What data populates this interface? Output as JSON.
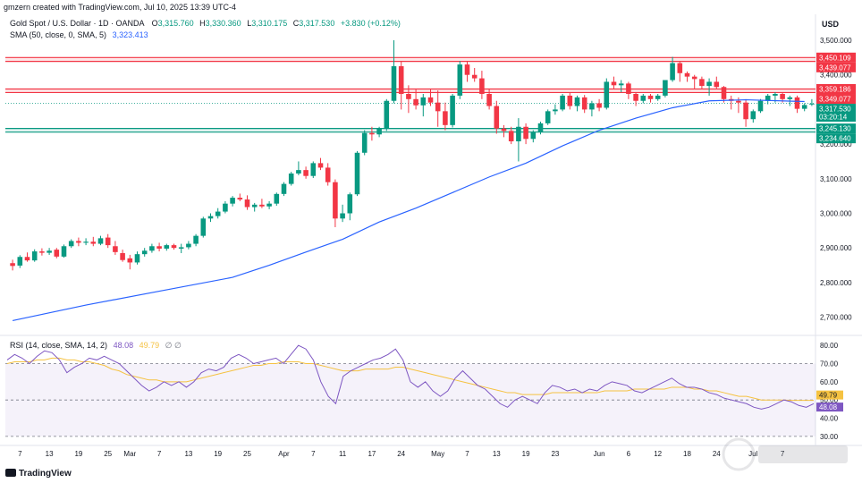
{
  "header": {
    "created_by": "gmzern created with TradingView.com, Jul 10, 2025 13:39 UTC-4",
    "symbol": "Gold Spot / U.S. Dollar · 1D · OANDA",
    "o_label": "O",
    "o_value": "3,315.760",
    "h_label": "H",
    "h_value": "3,330.360",
    "l_label": "L",
    "l_value": "3,310.175",
    "c_label": "C",
    "c_value": "3,317.530",
    "change": "+3.830 (+0.12%)",
    "sma_label": "SMA (50, close, 0, SMA, 5)",
    "sma_value": "3,323.413",
    "currency": "USD"
  },
  "rsi_legend": {
    "label": "RSI (14, close, SMA, 14, 2)",
    "rsi_value": "48.08",
    "ma_value": "49.79",
    "extra": "∅ ∅"
  },
  "brand": "TradingView",
  "colors": {
    "up": "#089981",
    "down": "#f23645",
    "sma": "#2962ff",
    "rsi": "#7e57c2",
    "rsi_ma": "#f5c242",
    "resistance": "#f23645",
    "support": "#089981"
  },
  "chart_data": [
    {
      "type": "candlestick",
      "yticks": [
        "3,500.000",
        "3,400.000",
        "3,300.000",
        "3,200.000",
        "3,100.000",
        "3,000.000",
        "2,900.000",
        "2,800.000",
        "2,700.000"
      ],
      "ytick_values": [
        3500,
        3400,
        3300,
        3200,
        3100,
        3000,
        2900,
        2800,
        2700
      ],
      "ylim": [
        2655,
        3575
      ],
      "xticks": [
        {
          "label": "7",
          "i": 1
        },
        {
          "label": "13",
          "i": 5
        },
        {
          "label": "19",
          "i": 9
        },
        {
          "label": "25",
          "i": 13
        },
        {
          "label": "Mar",
          "i": 16
        },
        {
          "label": "7",
          "i": 20
        },
        {
          "label": "13",
          "i": 24
        },
        {
          "label": "19",
          "i": 28
        },
        {
          "label": "25",
          "i": 32
        },
        {
          "label": "Apr",
          "i": 37
        },
        {
          "label": "7",
          "i": 41
        },
        {
          "label": "11",
          "i": 45
        },
        {
          "label": "17",
          "i": 49
        },
        {
          "label": "24",
          "i": 53
        },
        {
          "label": "May",
          "i": 58
        },
        {
          "label": "7",
          "i": 62
        },
        {
          "label": "13",
          "i": 66
        },
        {
          "label": "19",
          "i": 70
        },
        {
          "label": "23",
          "i": 74
        },
        {
          "label": "Jun",
          "i": 80
        },
        {
          "label": "6",
          "i": 84
        },
        {
          "label": "12",
          "i": 88
        },
        {
          "label": "18",
          "i": 92
        },
        {
          "label": "24",
          "i": 96
        },
        {
          "label": "Jul",
          "i": 101
        },
        {
          "label": "7",
          "i": 105
        }
      ],
      "price_tags": [
        {
          "value": 3450.109,
          "label": "3,450.109",
          "kind": "resistance"
        },
        {
          "value": 3439.077,
          "label": "3,439.077",
          "kind": "resistance"
        },
        {
          "value": 3359.186,
          "label": "3,359.186",
          "kind": "resistance"
        },
        {
          "value": 3349.077,
          "label": "3,349.077",
          "kind": "resistance"
        },
        {
          "value": 3317.53,
          "label": "3,317.530",
          "kind": "last",
          "sub": "03:20:14"
        },
        {
          "value": 3245.13,
          "label": "3,245.130",
          "kind": "support"
        },
        {
          "value": 3234.64,
          "label": "3,234.640",
          "kind": "support"
        }
      ],
      "candles": [
        [
          2856,
          2866,
          2835,
          2848
        ],
        [
          2849,
          2879,
          2842,
          2874
        ],
        [
          2874,
          2887,
          2860,
          2864
        ],
        [
          2864,
          2896,
          2860,
          2890
        ],
        [
          2890,
          2899,
          2878,
          2886
        ],
        [
          2886,
          2900,
          2880,
          2892
        ],
        [
          2895,
          2900,
          2870,
          2875
        ],
        [
          2875,
          2910,
          2872,
          2905
        ],
        [
          2905,
          2925,
          2900,
          2920
        ],
        [
          2920,
          2930,
          2905,
          2915
        ],
        [
          2915,
          2928,
          2908,
          2918
        ],
        [
          2918,
          2932,
          2905,
          2912
        ],
        [
          2912,
          2935,
          2908,
          2928
        ],
        [
          2930,
          2940,
          2900,
          2908
        ],
        [
          2905,
          2920,
          2880,
          2888
        ],
        [
          2885,
          2895,
          2860,
          2865
        ],
        [
          2870,
          2880,
          2838,
          2858
        ],
        [
          2858,
          2890,
          2852,
          2882
        ],
        [
          2882,
          2900,
          2875,
          2892
        ],
        [
          2892,
          2912,
          2886,
          2905
        ],
        [
          2905,
          2915,
          2890,
          2898
        ],
        [
          2898,
          2912,
          2892,
          2908
        ],
        [
          2908,
          2912,
          2895,
          2900
        ],
        [
          2898,
          2912,
          2885,
          2902
        ],
        [
          2902,
          2920,
          2896,
          2912
        ],
        [
          2912,
          2940,
          2905,
          2935
        ],
        [
          2935,
          2990,
          2930,
          2985
        ],
        [
          2985,
          3000,
          2975,
          2992
        ],
        [
          2992,
          3015,
          2985,
          3005
        ],
        [
          3005,
          3035,
          3000,
          3028
        ],
        [
          3028,
          3050,
          3020,
          3045
        ],
        [
          3045,
          3057,
          3035,
          3040
        ],
        [
          3040,
          3052,
          3010,
          3018
        ],
        [
          3018,
          3030,
          3005,
          3025
        ],
        [
          3025,
          3042,
          3015,
          3020
        ],
        [
          3020,
          3035,
          3012,
          3028
        ],
        [
          3028,
          3060,
          3022,
          3056
        ],
        [
          3056,
          3090,
          3050,
          3085
        ],
        [
          3085,
          3120,
          3080,
          3115
        ],
        [
          3115,
          3150,
          3110,
          3125
        ],
        [
          3125,
          3135,
          3100,
          3108
        ],
        [
          3108,
          3150,
          3102,
          3145
        ],
        [
          3145,
          3160,
          3125,
          3132
        ],
        [
          3132,
          3145,
          3080,
          3090
        ],
        [
          3090,
          3098,
          2960,
          2985
        ],
        [
          2985,
          3025,
          2975,
          3000
        ],
        [
          3000,
          3060,
          2980,
          3055
        ],
        [
          3055,
          3180,
          3050,
          3175
        ],
        [
          3175,
          3240,
          3168,
          3232
        ],
        [
          3232,
          3250,
          3210,
          3228
        ],
        [
          3228,
          3250,
          3220,
          3245
        ],
        [
          3245,
          3330,
          3238,
          3325
        ],
        [
          3325,
          3500,
          3318,
          3425
        ],
        [
          3425,
          3440,
          3300,
          3345
        ],
        [
          3345,
          3370,
          3290,
          3330
        ],
        [
          3330,
          3360,
          3300,
          3312
        ],
        [
          3312,
          3345,
          3280,
          3335
        ],
        [
          3335,
          3360,
          3310,
          3320
        ],
        [
          3320,
          3355,
          3250,
          3295
        ],
        [
          3295,
          3320,
          3240,
          3255
        ],
        [
          3255,
          3345,
          3248,
          3340
        ],
        [
          3340,
          3440,
          3330,
          3430
        ],
        [
          3430,
          3440,
          3380,
          3400
        ],
        [
          3400,
          3420,
          3380,
          3390
        ],
        [
          3390,
          3412,
          3330,
          3345
        ],
        [
          3345,
          3360,
          3300,
          3310
        ],
        [
          3310,
          3325,
          3230,
          3245
        ],
        [
          3245,
          3255,
          3220,
          3238
        ],
        [
          3238,
          3250,
          3200,
          3208
        ],
        [
          3208,
          3275,
          3150,
          3250
        ],
        [
          3250,
          3260,
          3200,
          3215
        ],
        [
          3215,
          3240,
          3205,
          3235
        ],
        [
          3235,
          3265,
          3228,
          3260
        ],
        [
          3260,
          3300,
          3255,
          3295
        ],
        [
          3295,
          3315,
          3285,
          3300
        ],
        [
          3300,
          3345,
          3295,
          3340
        ],
        [
          3340,
          3350,
          3300,
          3310
        ],
        [
          3310,
          3340,
          3295,
          3335
        ],
        [
          3335,
          3342,
          3290,
          3300
        ],
        [
          3300,
          3325,
          3280,
          3318
        ],
        [
          3318,
          3330,
          3295,
          3305
        ],
        [
          3305,
          3390,
          3300,
          3380
        ],
        [
          3380,
          3395,
          3360,
          3370
        ],
        [
          3370,
          3385,
          3350,
          3375
        ],
        [
          3375,
          3380,
          3330,
          3345
        ],
        [
          3345,
          3350,
          3310,
          3325
        ],
        [
          3325,
          3345,
          3318,
          3340
        ],
        [
          3340,
          3345,
          3320,
          3330
        ],
        [
          3330,
          3345,
          3325,
          3340
        ],
        [
          3340,
          3380,
          3335,
          3385
        ],
        [
          3385,
          3452,
          3380,
          3434
        ],
        [
          3434,
          3440,
          3380,
          3405
        ],
        [
          3405,
          3410,
          3380,
          3395
        ],
        [
          3395,
          3400,
          3360,
          3388
        ],
        [
          3388,
          3395,
          3360,
          3368
        ],
        [
          3368,
          3390,
          3340,
          3380
        ],
        [
          3380,
          3395,
          3360,
          3365
        ],
        [
          3365,
          3368,
          3320,
          3330
        ],
        [
          3330,
          3340,
          3300,
          3325
        ],
        [
          3325,
          3335,
          3290,
          3320
        ],
        [
          3320,
          3330,
          3250,
          3272
        ],
        [
          3272,
          3300,
          3262,
          3295
        ],
        [
          3295,
          3330,
          3290,
          3325
        ],
        [
          3325,
          3345,
          3315,
          3340
        ],
        [
          3340,
          3350,
          3320,
          3345
        ],
        [
          3345,
          3350,
          3320,
          3330
        ],
        [
          3330,
          3340,
          3310,
          3335
        ],
        [
          3335,
          3340,
          3290,
          3302
        ],
        [
          3302,
          3318,
          3295,
          3313
        ],
        [
          3315,
          3330,
          3310,
          3317
        ]
      ],
      "sma50": [
        [
          0,
          2690
        ],
        [
          10,
          2735
        ],
        [
          20,
          2775
        ],
        [
          30,
          2815
        ],
        [
          35,
          2850
        ],
        [
          40,
          2888
        ],
        [
          45,
          2925
        ],
        [
          50,
          2975
        ],
        [
          55,
          3015
        ],
        [
          60,
          3060
        ],
        [
          65,
          3105
        ],
        [
          70,
          3145
        ],
        [
          75,
          3195
        ],
        [
          80,
          3240
        ],
        [
          85,
          3275
        ],
        [
          90,
          3305
        ],
        [
          95,
          3325
        ],
        [
          100,
          3328
        ],
        [
          108,
          3323
        ]
      ]
    },
    {
      "type": "line",
      "name": "RSI",
      "yticks": [
        "80.00",
        "70.00",
        "60.00",
        "50.00",
        "40.00",
        "30.00"
      ],
      "ytick_values": [
        80,
        70,
        60,
        50,
        40,
        30
      ],
      "ylim": [
        27,
        84
      ],
      "overbought": 70,
      "oversold": 30,
      "midline": 50,
      "rsi": [
        72,
        75,
        73,
        70,
        74,
        77,
        76,
        72,
        65,
        68,
        70,
        73,
        72,
        74,
        72,
        70,
        66,
        62,
        58,
        55,
        57,
        60,
        58,
        60,
        57,
        60,
        65,
        67,
        66,
        68,
        73,
        75,
        73,
        70,
        71,
        72,
        73,
        70,
        75,
        80,
        78,
        72,
        60,
        52,
        48,
        63,
        66,
        68,
        70,
        72,
        73,
        75,
        78,
        72,
        60,
        57,
        60,
        55,
        52,
        55,
        62,
        66,
        62,
        58,
        56,
        52,
        48,
        46,
        50,
        52,
        50,
        48,
        54,
        58,
        57,
        55,
        56,
        54,
        56,
        55,
        58,
        60,
        59,
        58,
        55,
        54,
        56,
        58,
        60,
        62,
        59,
        57,
        57,
        56,
        54,
        53,
        51,
        50,
        49,
        48,
        46,
        45,
        46,
        48,
        50,
        49,
        47,
        46,
        48
      ],
      "rsi_ma": [
        70,
        71,
        71,
        71,
        72,
        72,
        73,
        73,
        72,
        72,
        71,
        71,
        70,
        69,
        67,
        66,
        64,
        63,
        62,
        61,
        61,
        60,
        60,
        60,
        60,
        61,
        62,
        63,
        64,
        65,
        66,
        67,
        68,
        69,
        69,
        70,
        70,
        71,
        71,
        71,
        70,
        70,
        69,
        68,
        67,
        66,
        66,
        66,
        67,
        67,
        67,
        67,
        68,
        68,
        67,
        66,
        65,
        64,
        63,
        62,
        61,
        60,
        59,
        58,
        57,
        56,
        55,
        54,
        54,
        53,
        53,
        53,
        53,
        54,
        54,
        54,
        54,
        54,
        54,
        54,
        55,
        55,
        55,
        55,
        56,
        56,
        56,
        56,
        56,
        57,
        57,
        57,
        56,
        56,
        55,
        55,
        54,
        53,
        52,
        52,
        51,
        50,
        50,
        50,
        50,
        49.8,
        49.8,
        49.8,
        49.79
      ]
    }
  ]
}
